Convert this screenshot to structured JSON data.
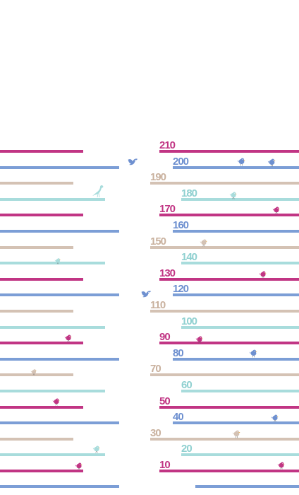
{
  "colors": {
    "magenta": "#c13584",
    "blue": "#7c9ed6",
    "tan": "#d4c2b4",
    "teal": "#a8dcdc"
  },
  "ruler_labels": [
    "210",
    "200",
    "190",
    "180",
    "170",
    "160",
    "150",
    "140",
    "130",
    "120",
    "110",
    "100",
    "90",
    "80",
    "70",
    "60",
    "50",
    "40",
    "30",
    "20",
    "10"
  ],
  "birds": [
    {
      "name": "bluebird-icon",
      "color": "#6e90d0"
    },
    {
      "name": "bluebird-icon",
      "color": "#6e90d0"
    },
    {
      "name": "bluebird-icon",
      "color": "#6e90d0"
    },
    {
      "name": "crane-bird-icon",
      "color": "#a8dcdc"
    },
    {
      "name": "teal-bird-icon",
      "color": "#a8dcdc"
    },
    {
      "name": "magenta-bird-icon",
      "color": "#c13584"
    },
    {
      "name": "tan-bird-icon",
      "color": "#d4c2b4"
    },
    {
      "name": "teal-bird-icon",
      "color": "#a8dcdc"
    },
    {
      "name": "magenta-bird-icon",
      "color": "#c13584"
    },
    {
      "name": "bluebird-icon",
      "color": "#6e90d0"
    },
    {
      "name": "magenta-bird-icon",
      "color": "#c13584"
    },
    {
      "name": "magenta-bird-icon",
      "color": "#c13584"
    },
    {
      "name": "bluebird-icon",
      "color": "#6e90d0"
    },
    {
      "name": "tan-bird-icon",
      "color": "#d4c2b4"
    },
    {
      "name": "magenta-bird-icon",
      "color": "#c13584"
    },
    {
      "name": "bluebird-icon",
      "color": "#6e90d0"
    },
    {
      "name": "tan-bird-icon",
      "color": "#d4c2b4"
    },
    {
      "name": "teal-bird-icon",
      "color": "#a8dcdc"
    },
    {
      "name": "magenta-bird-icon",
      "color": "#c13584"
    },
    {
      "name": "magenta-bird-icon",
      "color": "#c13584"
    }
  ]
}
